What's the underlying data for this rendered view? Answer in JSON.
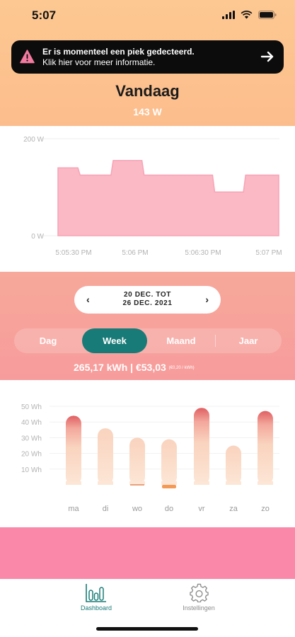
{
  "status_bar": {
    "time": "5:07"
  },
  "alert_banner": {
    "line1": "Er is momenteel een piek gedecteerd.",
    "line2": "Klik hier voor meer informatie."
  },
  "today": {
    "title": "Vandaag",
    "value": "143 W"
  },
  "live_chart": {
    "y_labels": [
      "200 W",
      "0 W"
    ],
    "x_labels": [
      "5:05:30 PM",
      "5:06 PM",
      "5:06:30 PM",
      "5:07 PM"
    ],
    "fill_color": "#fbb8c5",
    "line_color": "#f6a4b6",
    "ylim": [
      0,
      200
    ],
    "values": [
      {
        "x": 0.0,
        "y": 140
      },
      {
        "x": 0.09,
        "y": 140
      },
      {
        "x": 0.1,
        "y": 125
      },
      {
        "x": 0.24,
        "y": 125
      },
      {
        "x": 0.25,
        "y": 155
      },
      {
        "x": 0.38,
        "y": 155
      },
      {
        "x": 0.39,
        "y": 125
      },
      {
        "x": 0.7,
        "y": 125
      },
      {
        "x": 0.71,
        "y": 90
      },
      {
        "x": 0.84,
        "y": 90
      },
      {
        "x": 0.85,
        "y": 125
      },
      {
        "x": 1.0,
        "y": 125
      }
    ]
  },
  "period": {
    "date_line1": "20 DEC. TOT",
    "date_line2": "26 DEC. 2021",
    "prev": "‹",
    "next": "›",
    "tabs": [
      "Dag",
      "Week",
      "Maand",
      "Jaar"
    ],
    "active_tab": "Week",
    "usage": "265,17 kWh | €53,03",
    "usage_small": "(€0,20 / kWh)"
  },
  "chart_data": {
    "type": "bar",
    "categories": [
      "ma",
      "di",
      "wo",
      "do",
      "vr",
      "za",
      "zo"
    ],
    "values": [
      44,
      36,
      30,
      29,
      49,
      25,
      47
    ],
    "y_tick_labels": [
      "50 Wh",
      "40 Wh",
      "30 Wh",
      "20 Wh",
      "10 Wh"
    ],
    "y_ticks": [
      50,
      40,
      30,
      20,
      10
    ],
    "ylim": [
      0,
      50
    ],
    "title": "",
    "xlabel": "",
    "ylabel": ""
  },
  "tabbar": {
    "dashboard": "Dashboard",
    "settings": "Instellingen",
    "active_color": "#187b77",
    "inactive_color": "#8c8c8c"
  }
}
